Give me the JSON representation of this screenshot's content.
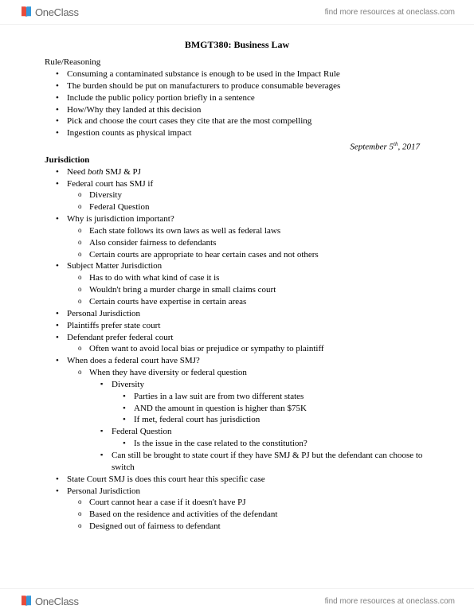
{
  "brand": {
    "name": "OneClass",
    "tagline": "find more resources at oneclass.com"
  },
  "title": "BMGT380: Business Law",
  "section1": {
    "heading": "Rule/Reasoning",
    "items": [
      "Consuming a contaminated substance is enough to be used in the Impact Rule",
      "The burden should be put on manufacturers to produce consumable beverages",
      "Include the public policy portion briefly in a sentence",
      "How/Why they landed at this decision",
      "Pick and choose the court cases they cite that are the most compelling",
      "Ingestion counts as physical impact"
    ]
  },
  "date": {
    "prefix": "September 5",
    "suffix": "th",
    "year": ", 2017"
  },
  "section2": {
    "heading": "Jurisdiction",
    "rows": [
      {
        "lvl": 1,
        "html": "Need <em>both</em> SMJ & PJ"
      },
      {
        "lvl": 1,
        "text": "Federal court has SMJ if"
      },
      {
        "lvl": 2,
        "text": "Diversity"
      },
      {
        "lvl": 2,
        "text": "Federal Question"
      },
      {
        "lvl": 1,
        "text": "Why is jurisdiction important?"
      },
      {
        "lvl": 2,
        "text": "Each state follows its own laws as well as federal laws"
      },
      {
        "lvl": 2,
        "text": "Also consider fairness to defendants"
      },
      {
        "lvl": 2,
        "text": "Certain courts are appropriate to hear certain cases and not others"
      },
      {
        "lvl": 1,
        "text": "Subject Matter Jurisdiction"
      },
      {
        "lvl": 2,
        "text": "Has to do with what kind of case it is"
      },
      {
        "lvl": 2,
        "text": "Wouldn't bring a murder charge in small claims court"
      },
      {
        "lvl": 2,
        "text": "Certain courts have expertise in certain areas"
      },
      {
        "lvl": 1,
        "text": "Personal Jurisdiction"
      },
      {
        "lvl": 1,
        "text": "Plaintiffs prefer state court"
      },
      {
        "lvl": 1,
        "text": "Defendant prefer federal court"
      },
      {
        "lvl": 2,
        "text": "Often want to avoid local bias or prejudice or sympathy to plaintiff"
      },
      {
        "lvl": 1,
        "text": "When does a federal court have SMJ?"
      },
      {
        "lvl": 2,
        "text": "When they have diversity or federal question"
      },
      {
        "lvl": 3,
        "text": "Diversity"
      },
      {
        "lvl": 4,
        "text": "Parties in a law suit are from two different states"
      },
      {
        "lvl": 4,
        "text": "AND the amount in question is higher than $75K"
      },
      {
        "lvl": 4,
        "text": "If met, federal court has jurisdiction"
      },
      {
        "lvl": 3,
        "text": "Federal Question"
      },
      {
        "lvl": 4,
        "text": "Is the issue in the case related to the constitution?"
      },
      {
        "lvl": 3,
        "text": "Can still be brought to state court if they have SMJ & PJ but the defendant can choose to switch"
      },
      {
        "lvl": 1,
        "text": "State Court SMJ is does this court hear this specific case"
      },
      {
        "lvl": 1,
        "text": "Personal Jurisdiction"
      },
      {
        "lvl": 2,
        "text": "Court cannot hear a case if it doesn't have PJ"
      },
      {
        "lvl": 2,
        "text": "Based on the residence and activities of the defendant"
      },
      {
        "lvl": 2,
        "text": "Designed out of fairness to defendant"
      }
    ]
  }
}
